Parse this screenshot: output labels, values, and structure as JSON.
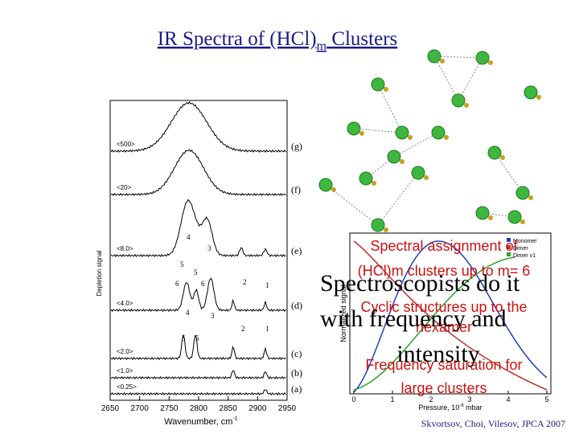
{
  "title": {
    "text": "IR Spectra of (HCl)",
    "sub": "m",
    "rest": " Clusters"
  },
  "spectra": {
    "trace_labels": [
      "(g)",
      "(f)",
      "(e)",
      "(d)",
      "(c)",
      "(b)",
      "(a)"
    ],
    "pressure_labels": [
      "<500>",
      "<20>",
      "<8.0>",
      "<4.0>",
      "<2.0>",
      "<1.0>",
      "<0.25>"
    ],
    "peak_labels": [
      "4",
      "3",
      "5",
      "5",
      "6",
      "6",
      "2",
      "1",
      "4",
      "3",
      "2",
      "5",
      "5",
      "1"
    ],
    "xticks": [
      2650,
      2700,
      2750,
      2800,
      2850,
      2900,
      2950
    ],
    "xlabel": {
      "text": "Wavenumber, cm",
      "sup": "-1"
    },
    "ylabel": "Depletion signal"
  },
  "inset": {
    "legend": [
      "Monomer",
      "Dimer",
      "Dimer v1"
    ],
    "ylabel": "Normalized signal",
    "xticks": [
      0,
      1,
      2,
      3,
      4,
      5
    ],
    "xlabel": {
      "text": "Pressure, 10",
      "sup": "-6",
      "rest": " mbar"
    }
  },
  "overlay": {
    "red_lines": [
      "Spectral assignment of",
      "(HCl)m clusters up to m= 6",
      "Cyclic structures up to the",
      "hexamer",
      "Frequency saturation for",
      "large clusters"
    ],
    "black_lines": [
      "Spectroscopists do it",
      "with frequency and",
      "intensity"
    ]
  },
  "citation": "Skvortsov, Choi, Vilesov, JPCA 2007"
}
